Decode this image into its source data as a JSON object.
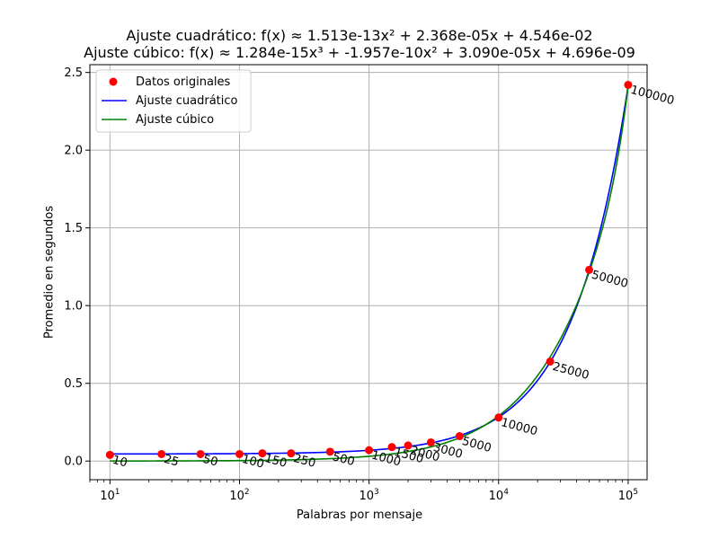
{
  "chart_data": {
    "type": "scatter",
    "title_lines": [
      "Ajuste cuadrático: f(x) ≈ 1.513e-13x² + 2.368e-05x + 4.546e-02",
      "Ajuste cúbico: f(x) ≈ 1.284e-15x³ + -1.957e-10x² + 3.090e-05x + 4.696e-09"
    ],
    "xlabel": "Palabras por mensaje",
    "ylabel": "Promedio en segundos",
    "xscale": "log",
    "xlim": [
      7,
      140000
    ],
    "ylim": [
      -0.12,
      2.55
    ],
    "grid": true,
    "legend_placement": "upper-left",
    "x_ticks": [
      {
        "value": 10,
        "base": "10",
        "exp": "1"
      },
      {
        "value": 100,
        "base": "10",
        "exp": "2"
      },
      {
        "value": 1000,
        "base": "10",
        "exp": "3"
      },
      {
        "value": 10000,
        "base": "10",
        "exp": "4"
      },
      {
        "value": 100000,
        "base": "10",
        "exp": "5"
      }
    ],
    "y_ticks": [
      {
        "value": 0.0,
        "label": "0.0"
      },
      {
        "value": 0.5,
        "label": "0.5"
      },
      {
        "value": 1.0,
        "label": "1.0"
      },
      {
        "value": 1.5,
        "label": "1.5"
      },
      {
        "value": 2.0,
        "label": "2.0"
      },
      {
        "value": 2.5,
        "label": "2.5"
      }
    ],
    "points": {
      "name": "Datos originales",
      "color": "#ff0000",
      "x": [
        10,
        25,
        50,
        100,
        150,
        250,
        500,
        1000,
        1500,
        2000,
        3000,
        5000,
        10000,
        25000,
        50000,
        100000
      ],
      "y": [
        0.04,
        0.045,
        0.045,
        0.045,
        0.05,
        0.05,
        0.06,
        0.07,
        0.09,
        0.1,
        0.12,
        0.16,
        0.28,
        0.64,
        1.23,
        2.42
      ],
      "labels": [
        "10",
        "25",
        "50",
        "100",
        "150",
        "250",
        "500",
        "1000",
        "1500",
        "2000",
        "3000",
        "5000",
        "10000",
        "25000",
        "50000",
        "100000"
      ]
    },
    "series": [
      {
        "name": "Ajuste cuadrático",
        "color": "#0000ff",
        "degree": 2,
        "coefficients": [
          1.513e-13,
          2.368e-05,
          0.04546
        ]
      },
      {
        "name": "Ajuste cúbico",
        "color": "#008000",
        "degree": 3,
        "coefficients": [
          1.284e-15,
          -1.957e-10,
          3.09e-05,
          4.696e-09
        ]
      }
    ]
  }
}
